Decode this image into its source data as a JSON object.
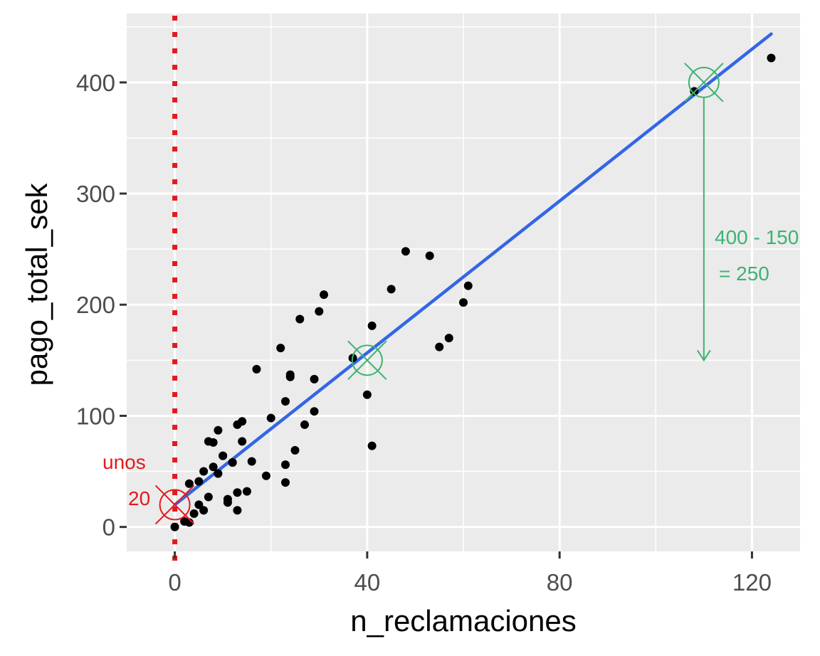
{
  "chart_data": {
    "type": "scatter",
    "title": "",
    "xlabel": "n_reclamaciones",
    "ylabel": "pago_total_sek",
    "xlim": [
      -10,
      130
    ],
    "ylim": [
      -22,
      462
    ],
    "x_ticks": [
      0,
      40,
      80,
      120
    ],
    "y_ticks": [
      0,
      100,
      200,
      300,
      400
    ],
    "x_tick_labels": [
      "0",
      "40",
      "80",
      "120"
    ],
    "y_tick_labels": [
      "0",
      "100",
      "200",
      "300",
      "400"
    ],
    "grid": true,
    "background": "#ebebeb",
    "point_color": "#000000",
    "points": [
      [
        0,
        0
      ],
      [
        2,
        5
      ],
      [
        3,
        4
      ],
      [
        4,
        12
      ],
      [
        5,
        20
      ],
      [
        6,
        15
      ],
      [
        7,
        27
      ],
      [
        3,
        39
      ],
      [
        5,
        41
      ],
      [
        6,
        50
      ],
      [
        8,
        54
      ],
      [
        9,
        48
      ],
      [
        10,
        64
      ],
      [
        11,
        22
      ],
      [
        11,
        25
      ],
      [
        12,
        58
      ],
      [
        13,
        15
      ],
      [
        13,
        31
      ],
      [
        13,
        92
      ],
      [
        14,
        77
      ],
      [
        14,
        95
      ],
      [
        15,
        32
      ],
      [
        16,
        59
      ],
      [
        17,
        142
      ],
      [
        19,
        46
      ],
      [
        20,
        98
      ],
      [
        22,
        161
      ],
      [
        23,
        40
      ],
      [
        23,
        56
      ],
      [
        23,
        113
      ],
      [
        24,
        135
      ],
      [
        24,
        137
      ],
      [
        25,
        69
      ],
      [
        26,
        187
      ],
      [
        27,
        92
      ],
      [
        29,
        104
      ],
      [
        29,
        133
      ],
      [
        30,
        194
      ],
      [
        31,
        209
      ],
      [
        37,
        152
      ],
      [
        40,
        119
      ],
      [
        41,
        73
      ],
      [
        41,
        181
      ],
      [
        45,
        214
      ],
      [
        48,
        248
      ],
      [
        53,
        244
      ],
      [
        55,
        162
      ],
      [
        57,
        170
      ],
      [
        60,
        202
      ],
      [
        61,
        217
      ],
      [
        108,
        392
      ],
      [
        124,
        422
      ],
      [
        7,
        77
      ],
      [
        8,
        76
      ],
      [
        9,
        87
      ],
      [
        10,
        64
      ],
      [
        12,
        58
      ]
    ],
    "regression": {
      "color": "#3366e6",
      "x": [
        0,
        124
      ],
      "y": [
        19.99,
        443.6
      ]
    },
    "reference_line": {
      "x": 0,
      "color": "#e31a1c",
      "style": "dotted"
    },
    "markers": [
      {
        "x": 0,
        "y": 20,
        "color": "#e31a1c"
      },
      {
        "x": 40,
        "y": 150,
        "color": "#3cb371"
      },
      {
        "x": 110,
        "y": 400,
        "color": "#3cb371"
      }
    ],
    "arrow": {
      "x": 110,
      "y_from": 400,
      "y_to": 150,
      "color": "#3cb371"
    },
    "annotations": {
      "red_line1": "unos",
      "red_line2": "20",
      "green_line1": "400 - 150",
      "green_line2": "= 250"
    }
  }
}
